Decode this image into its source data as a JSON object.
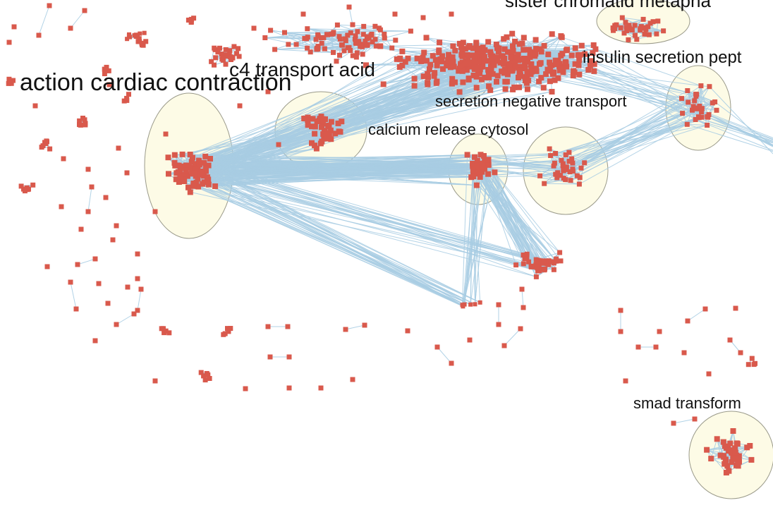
{
  "diagram": {
    "type": "network-graph",
    "colors": {
      "background": "#ffffff",
      "node": "#d9594c",
      "edge": "#a8cde3",
      "cluster_fill": "#fdfbe6",
      "cluster_stroke": "#9a9a8a",
      "label": "#111111"
    },
    "clusters": [
      {
        "id": "action-cardiac-contraction",
        "label": "action cardiac contraction"
      },
      {
        "id": "c4-transport-acid",
        "label": "c4 transport acid"
      },
      {
        "id": "secretion-negative-transport",
        "label": "secretion negative transport"
      },
      {
        "id": "calcium-release-cytosol",
        "label": "calcium release cytosol"
      },
      {
        "id": "insulin-secretion",
        "label": "insulin secretion pept"
      },
      {
        "id": "sister-chromatid",
        "label": "sister chromatid metapha"
      },
      {
        "id": "smad-transform",
        "label": "smad transform"
      }
    ]
  }
}
